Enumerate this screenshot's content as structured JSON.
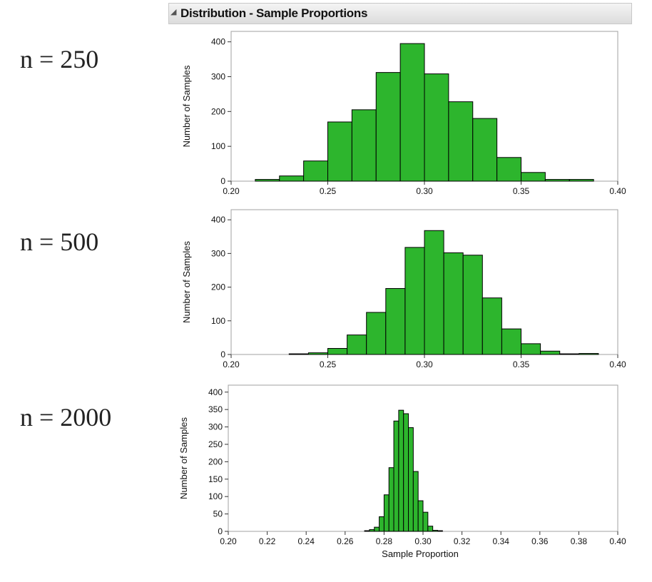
{
  "panel": {
    "title": "Distribution - Sample Proportions"
  },
  "chart_data": [
    {
      "type": "bar",
      "label": "n = 250",
      "ylabel": "Number of Samples",
      "xlabel": "",
      "xlim": [
        0.2,
        0.4
      ],
      "ylim": [
        0,
        430
      ],
      "xticks": [
        "0.20",
        "0.25",
        "0.30",
        "0.35",
        "0.40"
      ],
      "yticks": [
        "0",
        "100",
        "200",
        "300",
        "400"
      ],
      "color": "#2db52d",
      "bins": [
        {
          "x0": 0.2125,
          "x1": 0.225,
          "value": 5
        },
        {
          "x0": 0.225,
          "x1": 0.2375,
          "value": 15
        },
        {
          "x0": 0.2375,
          "x1": 0.25,
          "value": 58
        },
        {
          "x0": 0.25,
          "x1": 0.2625,
          "value": 170
        },
        {
          "x0": 0.2625,
          "x1": 0.275,
          "value": 205
        },
        {
          "x0": 0.275,
          "x1": 0.2875,
          "value": 312
        },
        {
          "x0": 0.2875,
          "x1": 0.3,
          "value": 395
        },
        {
          "x0": 0.3,
          "x1": 0.3125,
          "value": 308
        },
        {
          "x0": 0.3125,
          "x1": 0.325,
          "value": 228
        },
        {
          "x0": 0.325,
          "x1": 0.3375,
          "value": 180
        },
        {
          "x0": 0.3375,
          "x1": 0.35,
          "value": 68
        },
        {
          "x0": 0.35,
          "x1": 0.3625,
          "value": 25
        },
        {
          "x0": 0.3625,
          "x1": 0.375,
          "value": 5
        },
        {
          "x0": 0.375,
          "x1": 0.3875,
          "value": 5
        }
      ]
    },
    {
      "type": "bar",
      "label": "n = 500",
      "ylabel": "Number of Samples",
      "xlabel": "",
      "xlim": [
        0.2,
        0.4
      ],
      "ylim": [
        0,
        430
      ],
      "xticks": [
        "0.20",
        "0.25",
        "0.30",
        "0.35",
        "0.40"
      ],
      "yticks": [
        "0",
        "100",
        "200",
        "300",
        "400"
      ],
      "color": "#2db52d",
      "bins": [
        {
          "x0": 0.23,
          "x1": 0.24,
          "value": 2
        },
        {
          "x0": 0.24,
          "x1": 0.25,
          "value": 5
        },
        {
          "x0": 0.25,
          "x1": 0.26,
          "value": 18
        },
        {
          "x0": 0.26,
          "x1": 0.27,
          "value": 58
        },
        {
          "x0": 0.27,
          "x1": 0.28,
          "value": 125
        },
        {
          "x0": 0.28,
          "x1": 0.29,
          "value": 196
        },
        {
          "x0": 0.29,
          "x1": 0.3,
          "value": 318
        },
        {
          "x0": 0.3,
          "x1": 0.31,
          "value": 368
        },
        {
          "x0": 0.31,
          "x1": 0.32,
          "value": 302
        },
        {
          "x0": 0.32,
          "x1": 0.33,
          "value": 295
        },
        {
          "x0": 0.33,
          "x1": 0.34,
          "value": 168
        },
        {
          "x0": 0.34,
          "x1": 0.35,
          "value": 76
        },
        {
          "x0": 0.35,
          "x1": 0.36,
          "value": 32
        },
        {
          "x0": 0.36,
          "x1": 0.37,
          "value": 10
        },
        {
          "x0": 0.37,
          "x1": 0.38,
          "value": 2
        },
        {
          "x0": 0.38,
          "x1": 0.39,
          "value": 3
        }
      ]
    },
    {
      "type": "bar",
      "label": "n = 2000",
      "ylabel": "Number of Samples",
      "xlabel": "Sample Proportion",
      "xlim": [
        0.2,
        0.4
      ],
      "ylim": [
        0,
        420
      ],
      "xticks": [
        "0.20",
        "0.22",
        "0.24",
        "0.26",
        "0.28",
        "0.30",
        "0.32",
        "0.34",
        "0.36",
        "0.38",
        "0.40"
      ],
      "yticks": [
        "0",
        "50",
        "100",
        "150",
        "200",
        "250",
        "300",
        "350",
        "400"
      ],
      "color": "#2db52d",
      "bins": [
        {
          "x0": 0.27,
          "x1": 0.2725,
          "value": 2
        },
        {
          "x0": 0.2725,
          "x1": 0.275,
          "value": 5
        },
        {
          "x0": 0.275,
          "x1": 0.2775,
          "value": 12
        },
        {
          "x0": 0.2775,
          "x1": 0.28,
          "value": 42
        },
        {
          "x0": 0.28,
          "x1": 0.2825,
          "value": 105
        },
        {
          "x0": 0.2825,
          "x1": 0.285,
          "value": 183
        },
        {
          "x0": 0.285,
          "x1": 0.2875,
          "value": 317
        },
        {
          "x0": 0.2875,
          "x1": 0.29,
          "value": 348
        },
        {
          "x0": 0.29,
          "x1": 0.2925,
          "value": 338
        },
        {
          "x0": 0.2925,
          "x1": 0.295,
          "value": 298
        },
        {
          "x0": 0.295,
          "x1": 0.2975,
          "value": 172
        },
        {
          "x0": 0.2975,
          "x1": 0.3,
          "value": 88
        },
        {
          "x0": 0.3,
          "x1": 0.3025,
          "value": 55
        },
        {
          "x0": 0.3025,
          "x1": 0.305,
          "value": 15
        },
        {
          "x0": 0.305,
          "x1": 0.3075,
          "value": 3
        },
        {
          "x0": 0.3075,
          "x1": 0.31,
          "value": 2
        }
      ]
    }
  ]
}
